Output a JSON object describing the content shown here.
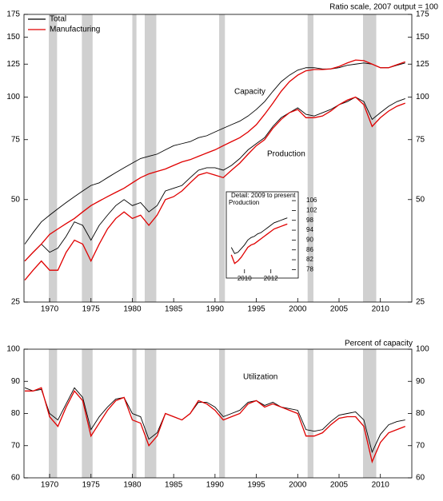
{
  "chart_data": [
    {
      "type": "line",
      "log": true,
      "note": "Ratio scale, 2007 output = 100",
      "annotations": [
        "Capacity",
        "Production"
      ],
      "x": [
        1967,
        1968,
        1969,
        1970,
        1971,
        1972,
        1973,
        1974,
        1975,
        1976,
        1977,
        1978,
        1979,
        1980,
        1981,
        1982,
        1983,
        1984,
        1985,
        1986,
        1987,
        1988,
        1989,
        1990,
        1991,
        1992,
        1993,
        1994,
        1995,
        1996,
        1997,
        1998,
        1999,
        2000,
        2001,
        2002,
        2003,
        2004,
        2005,
        2006,
        2007,
        2008,
        2009,
        2010,
        2011,
        2012,
        2013
      ],
      "xlim": [
        1966.9,
        2013.8
      ],
      "xticks": [
        1970,
        1975,
        1980,
        1985,
        1990,
        1995,
        2000,
        2005,
        2010
      ],
      "ylim": [
        25,
        175
      ],
      "yticks": [
        25,
        50,
        75,
        100,
        125,
        150,
        175
      ],
      "y_axis_sides": [
        "left",
        "right"
      ],
      "shaded": true,
      "shaded_ranges": [
        [
          1969.9,
          1970.9
        ],
        [
          1973.9,
          1975.2
        ],
        [
          1980.0,
          1980.5
        ],
        [
          1981.5,
          1982.9
        ],
        [
          1990.5,
          1991.2
        ],
        [
          2001.2,
          2001.9
        ],
        [
          2007.9,
          2009.5
        ]
      ],
      "series": [
        {
          "name": "Total",
          "color": "#000000",
          "capacity": [
            37,
            40,
            43,
            45,
            47,
            49,
            51,
            53,
            55,
            56,
            58,
            60,
            62,
            64,
            66,
            67,
            68,
            70,
            72,
            73,
            74,
            76,
            77,
            79,
            81,
            83,
            85,
            88,
            92,
            97,
            104,
            111,
            116,
            120,
            122,
            122,
            121,
            121,
            122,
            124,
            125,
            126,
            125,
            122,
            122,
            124,
            126
          ],
          "production": [
            33,
            35,
            37,
            35,
            36,
            39,
            43,
            42,
            38,
            42,
            45,
            48,
            50,
            48,
            49,
            46,
            48,
            53,
            54,
            55,
            58,
            61,
            62,
            62,
            61,
            63,
            66,
            70,
            73,
            76,
            82,
            87,
            90,
            93,
            89,
            88,
            90,
            92,
            95,
            97,
            100,
            97,
            86,
            90,
            94,
            97,
            99
          ]
        },
        {
          "name": "Manufacturing",
          "color": "#e00000",
          "capacity": [
            33,
            35,
            37,
            39.5,
            41,
            42.5,
            44,
            46,
            48,
            49.5,
            51,
            52.5,
            54,
            56,
            58,
            59.5,
            60.5,
            61.5,
            63,
            64.5,
            65.5,
            67,
            68.5,
            70,
            72,
            74,
            76,
            79,
            83,
            89,
            96,
            104,
            111,
            116,
            119.5,
            120.5,
            120.5,
            121,
            123,
            126,
            128.5,
            128,
            125,
            122,
            122,
            124.5,
            127
          ],
          "production": [
            29,
            31,
            33,
            31,
            31,
            35,
            38,
            37,
            33,
            37,
            41,
            44,
            46,
            44,
            45,
            42,
            45,
            50,
            51,
            53,
            56,
            59,
            60,
            59,
            58,
            61,
            64,
            68,
            72,
            75,
            81,
            86,
            90,
            92,
            87,
            87,
            88,
            91,
            95,
            98,
            100,
            95,
            82,
            87,
            91,
            94,
            96
          ]
        }
      ]
    },
    {
      "type": "line",
      "log": false,
      "title": "Detail: 2009 to present",
      "annotations": [
        "Production"
      ],
      "x": [
        2009,
        2009.25,
        2009.5,
        2009.75,
        2010,
        2010.25,
        2010.5,
        2010.75,
        2011,
        2011.25,
        2011.5,
        2011.75,
        2012,
        2012.25,
        2012.5,
        2012.75,
        2013,
        2013.25
      ],
      "xlim": [
        2008.8,
        2013.9
      ],
      "xticks": [
        2010,
        2012
      ],
      "ylim": [
        76.5,
        107
      ],
      "yticks": [
        78,
        82,
        86,
        90,
        94,
        98,
        102,
        106
      ],
      "y_axis_sides": [
        "right"
      ],
      "series": [
        {
          "color": "#000000",
          "values": [
            87,
            84.5,
            85,
            86.5,
            88,
            90,
            91,
            91.5,
            92.5,
            93,
            94,
            95,
            96,
            97,
            97.5,
            98,
            98.5,
            99
          ]
        },
        {
          "color": "#e00000",
          "values": [
            84,
            80.5,
            81.5,
            83,
            85,
            87,
            88,
            88.5,
            89.5,
            90.5,
            91.5,
            92.5,
            93.5,
            94.5,
            95,
            95.5,
            96,
            96.5
          ]
        }
      ]
    },
    {
      "type": "line",
      "log": false,
      "annotations": [
        "Percent of capacity",
        "Utilization"
      ],
      "x": [
        1967,
        1968,
        1969,
        1970,
        1971,
        1972,
        1973,
        1974,
        1975,
        1976,
        1977,
        1978,
        1979,
        1980,
        1981,
        1982,
        1983,
        1984,
        1985,
        1986,
        1987,
        1988,
        1989,
        1990,
        1991,
        1992,
        1993,
        1994,
        1995,
        1996,
        1997,
        1998,
        1999,
        2000,
        2001,
        2002,
        2003,
        2004,
        2005,
        2006,
        2007,
        2008,
        2009,
        2010,
        2011,
        2012,
        2013
      ],
      "xlim": [
        1966.9,
        2013.8
      ],
      "xticks": [
        1970,
        1975,
        1980,
        1985,
        1990,
        1995,
        2000,
        2005,
        2010
      ],
      "ylim": [
        60,
        100
      ],
      "yticks": [
        60,
        70,
        80,
        90,
        100
      ],
      "y_axis_sides": [
        "left",
        "right"
      ],
      "shaded": true,
      "series": [
        {
          "color": "#000000",
          "values": [
            88,
            87,
            87.5,
            80,
            78,
            83,
            88,
            85,
            75,
            79,
            82,
            84.5,
            85,
            80,
            79,
            72,
            74,
            80,
            79,
            78,
            80,
            83.5,
            83.5,
            82,
            79,
            80,
            81,
            83.5,
            84,
            82.5,
            83.5,
            82,
            81.5,
            81,
            75,
            74.5,
            75,
            77.5,
            79.5,
            80,
            80.5,
            78,
            68,
            73.5,
            76.5,
            77.5,
            78
          ]
        },
        {
          "color": "#e00000",
          "values": [
            87,
            87,
            88,
            79,
            76,
            82,
            87,
            84,
            73,
            77,
            81,
            84,
            85,
            78,
            77,
            70,
            73,
            80,
            79,
            78,
            80,
            84,
            83,
            81,
            78,
            79,
            80,
            83,
            84,
            82,
            83,
            82,
            81,
            80,
            73,
            73,
            74,
            76.5,
            78.5,
            79,
            79,
            76,
            65,
            71,
            74,
            75,
            76
          ]
        }
      ]
    }
  ]
}
